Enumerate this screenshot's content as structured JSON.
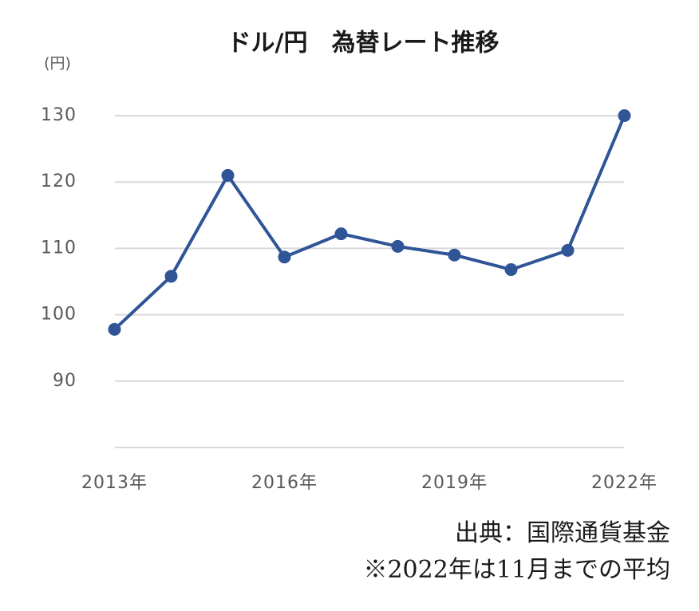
{
  "chart_data": {
    "type": "line",
    "title": "ドル/円　為替レート推移",
    "unit_label": "(円)",
    "categories": [
      "2013年",
      null,
      null,
      "2016年",
      null,
      null,
      "2019年",
      null,
      null,
      "2022年"
    ],
    "series": [
      {
        "name": "ドル/円",
        "color": "#2f5597",
        "values": [
          97.8,
          105.8,
          121.0,
          108.7,
          112.2,
          110.3,
          109.0,
          106.8,
          109.7,
          130.0
        ]
      }
    ],
    "ylim": [
      80,
      130
    ],
    "yticks": [
      90,
      100,
      110,
      120,
      130
    ],
    "grid": true,
    "notes": [
      "出典：国際通貨基金",
      "※2022年は11月までの平均"
    ]
  }
}
